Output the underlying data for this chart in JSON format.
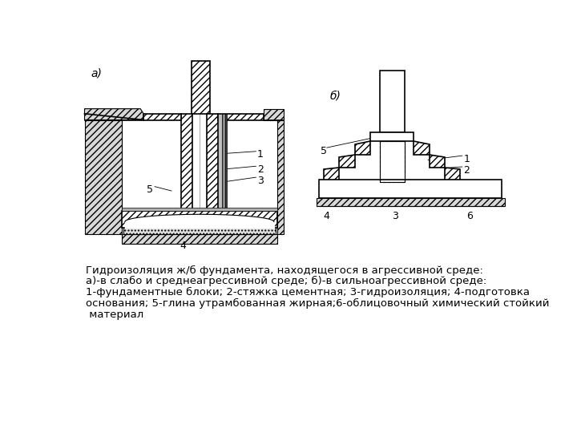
{
  "background_color": "#ffffff",
  "line_color": "#000000",
  "label_a": "а)",
  "label_b": "б)",
  "caption_line1": "Гидроизоляция ж/б фундамента, находящегося в агрессивной среде:",
  "caption_line2": "а)-в слабо и среднеагрессивной среде; б)-в сильноагрессивной среде:",
  "caption_line3": "1-фундаментные блоки; 2-стяжка цементная; 3-гидроизоляция; 4-подготовка",
  "caption_line4": "основания; 5-глина утрамбованная жирная;6-облицовочный химический стойкий",
  "caption_line5": " материал",
  "caption_fontsize": 9.5,
  "label_fontsize": 10
}
